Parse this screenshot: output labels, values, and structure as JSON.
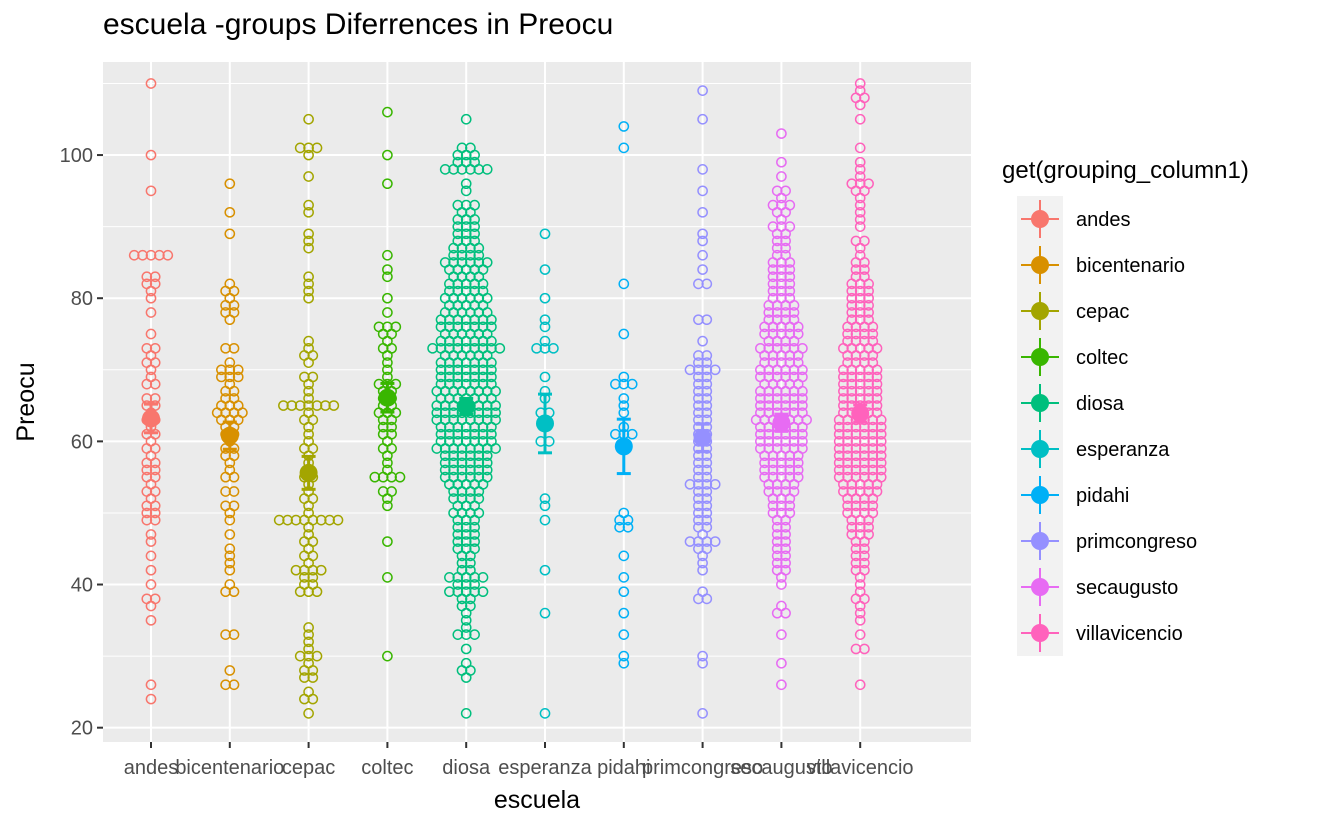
{
  "chart_data": {
    "type": "scatter",
    "title": "escuela -groups Diferrences in  Preocu",
    "xlabel": "escuela",
    "ylabel": "Preocu",
    "categories": [
      "andes",
      "bicentenario",
      "cepac",
      "coltec",
      "diosa",
      "esperanza",
      "pidahi",
      "primcongreso",
      "secaugusto",
      "villavicencio"
    ],
    "y_ticks": [
      20,
      40,
      60,
      80,
      100
    ],
    "ylim": [
      18,
      113
    ],
    "grid": true,
    "legend": {
      "title": "get(grouping_column1)",
      "placement": "right"
    },
    "colors": {
      "andes": "#F8766D",
      "bicentenario": "#D89000",
      "cepac": "#A3A500",
      "coltec": "#39B600",
      "diosa": "#00BF7D",
      "esperanza": "#00BFC4",
      "pidahi": "#00B0F6",
      "primcongreso": "#9590FF",
      "secaugusto": "#E76BF3",
      "villavicencio": "#FF62BC",
      "panel_background": "#EBEBEB",
      "grid": "#FFFFFF"
    },
    "series": [
      {
        "name": "andes",
        "mean": 63.2,
        "ci": [
          61.2,
          65.2
        ],
        "values": [
          110,
          100,
          95,
          86,
          86,
          86,
          86,
          86,
          83,
          83,
          82,
          82,
          81,
          80,
          78,
          75,
          73,
          73,
          72,
          71,
          71,
          70,
          69,
          68,
          68,
          66,
          66,
          65,
          65,
          64,
          63,
          63,
          62,
          61,
          61,
          60,
          59,
          59,
          58,
          57,
          57,
          56,
          56,
          55,
          55,
          54,
          53,
          53,
          52,
          51,
          51,
          50,
          50,
          49,
          49,
          47,
          46,
          44,
          42,
          40,
          38,
          38,
          37,
          35,
          26,
          24
        ]
      },
      {
        "name": "bicentenario",
        "mean": 60.8,
        "ci": [
          58.9,
          62.7
        ],
        "values": [
          96,
          92,
          89,
          82,
          81,
          81,
          80,
          79,
          79,
          78,
          78,
          77,
          73,
          73,
          71,
          70,
          70,
          70,
          69,
          69,
          69,
          68,
          67,
          67,
          66,
          66,
          65,
          65,
          65,
          64,
          64,
          64,
          64,
          63,
          63,
          63,
          62,
          62,
          61,
          61,
          60,
          59,
          59,
          58,
          58,
          57,
          56,
          55,
          55,
          53,
          53,
          51,
          51,
          50,
          49,
          47,
          45,
          44,
          43,
          42,
          40,
          39,
          39,
          33,
          33,
          28,
          26,
          26
        ]
      },
      {
        "name": "cepac",
        "mean": 55.6,
        "ci": [
          53.3,
          57.9
        ],
        "values": [
          105,
          101,
          101,
          101,
          100,
          97,
          93,
          92,
          89,
          88,
          87,
          83,
          82,
          81,
          80,
          74,
          73,
          72,
          72,
          71,
          69,
          69,
          68,
          67,
          66,
          65,
          65,
          65,
          65,
          65,
          65,
          65,
          64,
          63,
          63,
          62,
          61,
          60,
          59,
          59,
          58,
          57,
          56,
          55,
          55,
          54,
          53,
          52,
          52,
          51,
          50,
          49,
          49,
          49,
          49,
          49,
          49,
          49,
          49,
          48,
          47,
          46,
          46,
          45,
          44,
          44,
          43,
          42,
          42,
          42,
          42,
          41,
          41,
          40,
          40,
          39,
          39,
          39,
          34,
          33,
          32,
          31,
          30,
          30,
          30,
          29,
          28,
          28,
          27,
          27,
          25,
          24,
          24,
          22
        ]
      },
      {
        "name": "coltec",
        "mean": 66.1,
        "ci": [
          64.1,
          68.1
        ],
        "values": [
          106,
          100,
          96,
          86,
          84,
          83,
          80,
          78,
          76,
          76,
          76,
          75,
          75,
          74,
          73,
          73,
          72,
          71,
          70,
          69,
          68,
          68,
          68,
          67,
          67,
          66,
          66,
          65,
          65,
          64,
          64,
          64,
          63,
          63,
          62,
          62,
          61,
          61,
          60,
          59,
          59,
          58,
          57,
          56,
          55,
          55,
          55,
          55,
          53,
          53,
          52,
          51,
          46,
          41,
          30
        ]
      },
      {
        "name": "diosa",
        "mean": 64.9,
        "ci": [
          63.8,
          66.0
        ],
        "values": [
          105,
          101,
          101,
          100,
          100,
          100,
          99,
          99,
          99,
          98,
          98,
          98,
          98,
          98,
          98,
          96,
          95,
          93,
          93,
          93,
          92,
          92,
          91,
          91,
          91,
          90,
          90,
          90,
          89,
          89,
          89,
          88,
          88,
          88,
          87,
          87,
          87,
          87,
          86,
          86,
          86,
          86,
          85,
          85,
          85,
          85,
          85,
          85,
          84,
          84,
          84,
          84,
          84,
          83,
          83,
          83,
          83,
          82,
          82,
          82,
          82,
          82,
          81,
          81,
          81,
          81,
          81,
          80,
          80,
          80,
          80,
          80,
          80,
          79,
          79,
          79,
          79,
          79,
          78,
          78,
          78,
          78,
          78,
          78,
          77,
          77,
          77,
          77,
          77,
          77,
          77,
          76,
          76,
          76,
          76,
          76,
          76,
          76,
          75,
          75,
          75,
          75,
          75,
          75,
          74,
          74,
          74,
          74,
          74,
          74,
          74,
          73,
          73,
          73,
          73,
          73,
          73,
          73,
          73,
          73,
          72,
          72,
          72,
          72,
          72,
          72,
          71,
          71,
          71,
          71,
          71,
          71,
          71,
          70,
          70,
          70,
          70,
          70,
          70,
          70,
          69,
          69,
          69,
          69,
          69,
          69,
          69,
          68,
          68,
          68,
          68,
          68,
          68,
          68,
          67,
          67,
          67,
          67,
          67,
          67,
          67,
          67,
          66,
          66,
          66,
          66,
          66,
          66,
          66,
          65,
          65,
          65,
          65,
          65,
          65,
          65,
          65,
          64,
          64,
          64,
          64,
          64,
          64,
          64,
          64,
          63,
          63,
          63,
          63,
          63,
          63,
          63,
          63,
          62,
          62,
          62,
          62,
          62,
          62,
          62,
          61,
          61,
          61,
          61,
          61,
          61,
          61,
          60,
          60,
          60,
          60,
          60,
          60,
          60,
          59,
          59,
          59,
          59,
          59,
          59,
          59,
          59,
          58,
          58,
          58,
          58,
          58,
          58,
          57,
          57,
          57,
          57,
          57,
          57,
          56,
          56,
          56,
          56,
          56,
          56,
          55,
          55,
          55,
          55,
          55,
          55,
          54,
          54,
          54,
          54,
          54,
          53,
          53,
          53,
          53,
          52,
          52,
          52,
          52,
          51,
          51,
          51,
          50,
          50,
          50,
          50,
          49,
          49,
          49,
          48,
          48,
          48,
          47,
          47,
          47,
          46,
          46,
          46,
          45,
          45,
          45,
          44,
          44,
          43,
          43,
          42,
          42,
          41,
          41,
          41,
          41,
          41,
          40,
          40,
          40,
          39,
          39,
          39,
          39,
          39,
          38,
          38,
          37,
          37,
          36,
          35,
          34,
          33,
          33,
          33,
          31,
          29,
          28,
          28,
          27,
          22
        ]
      },
      {
        "name": "esperanza",
        "mean": 62.5,
        "ci": [
          58.4,
          66.6
        ],
        "values": [
          89,
          84,
          80,
          77,
          76,
          74,
          73,
          73,
          73,
          69,
          67,
          66,
          64,
          64,
          63,
          62,
          60,
          60,
          52,
          51,
          49,
          42,
          36,
          22
        ]
      },
      {
        "name": "pidahi",
        "mean": 59.3,
        "ci": [
          55.5,
          63.1
        ],
        "values": [
          104,
          101,
          82,
          75,
          69,
          68,
          68,
          68,
          66,
          65,
          64,
          62,
          61,
          61,
          61,
          50,
          49,
          49,
          48,
          48,
          44,
          41,
          39,
          36,
          33,
          30,
          29
        ]
      },
      {
        "name": "primcongreso",
        "mean": 60.5,
        "ci": [
          58.6,
          62.4
        ],
        "values": [
          109,
          105,
          98,
          95,
          92,
          89,
          88,
          86,
          84,
          82,
          82,
          77,
          77,
          74,
          72,
          72,
          71,
          71,
          70,
          70,
          70,
          70,
          69,
          69,
          68,
          68,
          67,
          67,
          66,
          66,
          65,
          65,
          64,
          64,
          63,
          63,
          62,
          62,
          61,
          61,
          60,
          60,
          59,
          59,
          58,
          58,
          57,
          57,
          56,
          56,
          55,
          55,
          54,
          54,
          54,
          54,
          53,
          53,
          52,
          52,
          51,
          51,
          50,
          50,
          49,
          49,
          48,
          48,
          47,
          46,
          46,
          46,
          46,
          45,
          45,
          44,
          43,
          42,
          39,
          38,
          38,
          30,
          29,
          22
        ]
      },
      {
        "name": "secaugusto",
        "mean": 62.6,
        "ci": [
          61.4,
          63.8
        ],
        "values": [
          103,
          99,
          97,
          95,
          95,
          94,
          93,
          93,
          93,
          92,
          92,
          91,
          90,
          90,
          90,
          89,
          89,
          88,
          88,
          87,
          87,
          86,
          86,
          85,
          85,
          85,
          84,
          84,
          84,
          83,
          83,
          83,
          82,
          82,
          82,
          81,
          81,
          81,
          80,
          80,
          80,
          79,
          79,
          79,
          79,
          78,
          78,
          78,
          78,
          77,
          77,
          77,
          77,
          76,
          76,
          76,
          76,
          76,
          75,
          75,
          75,
          75,
          75,
          74,
          74,
          74,
          74,
          73,
          73,
          73,
          73,
          73,
          73,
          72,
          72,
          72,
          72,
          72,
          71,
          71,
          71,
          71,
          71,
          70,
          70,
          70,
          70,
          70,
          70,
          69,
          69,
          69,
          69,
          69,
          69,
          68,
          68,
          68,
          68,
          68,
          67,
          67,
          67,
          67,
          67,
          67,
          66,
          66,
          66,
          66,
          66,
          66,
          65,
          65,
          65,
          65,
          65,
          65,
          64,
          64,
          64,
          64,
          64,
          64,
          63,
          63,
          63,
          63,
          63,
          63,
          63,
          62,
          62,
          62,
          62,
          62,
          62,
          61,
          61,
          61,
          61,
          61,
          61,
          60,
          60,
          60,
          60,
          60,
          60,
          59,
          59,
          59,
          59,
          59,
          59,
          58,
          58,
          58,
          58,
          58,
          57,
          57,
          57,
          57,
          57,
          56,
          56,
          56,
          56,
          56,
          55,
          55,
          55,
          55,
          55,
          54,
          54,
          54,
          54,
          53,
          53,
          53,
          53,
          52,
          52,
          52,
          51,
          51,
          51,
          50,
          50,
          50,
          49,
          49,
          48,
          48,
          47,
          47,
          46,
          46,
          45,
          45,
          44,
          44,
          43,
          43,
          42,
          42,
          41,
          40,
          37,
          36,
          36,
          33,
          29,
          26
        ]
      },
      {
        "name": "villavicencio",
        "mean": 63.9,
        "ci": [
          62.7,
          65.1
        ],
        "values": [
          110,
          109,
          108,
          108,
          107,
          105,
          101,
          99,
          98,
          97,
          96,
          96,
          96,
          95,
          95,
          94,
          93,
          92,
          91,
          90,
          88,
          88,
          87,
          86,
          85,
          85,
          84,
          84,
          83,
          83,
          82,
          82,
          82,
          81,
          81,
          81,
          80,
          80,
          80,
          79,
          79,
          79,
          78,
          78,
          78,
          77,
          77,
          77,
          76,
          76,
          76,
          76,
          75,
          75,
          75,
          75,
          74,
          74,
          74,
          74,
          73,
          73,
          73,
          73,
          73,
          72,
          72,
          72,
          72,
          71,
          71,
          71,
          71,
          70,
          70,
          70,
          70,
          70,
          69,
          69,
          69,
          69,
          69,
          68,
          68,
          68,
          68,
          68,
          67,
          67,
          67,
          67,
          67,
          66,
          66,
          66,
          66,
          66,
          65,
          65,
          65,
          65,
          65,
          64,
          64,
          64,
          64,
          64,
          63,
          63,
          63,
          63,
          63,
          63,
          62,
          62,
          62,
          62,
          62,
          62,
          61,
          61,
          61,
          61,
          61,
          61,
          60,
          60,
          60,
          60,
          60,
          60,
          59,
          59,
          59,
          59,
          59,
          59,
          58,
          58,
          58,
          58,
          58,
          58,
          57,
          57,
          57,
          57,
          57,
          57,
          56,
          56,
          56,
          56,
          56,
          56,
          55,
          55,
          55,
          55,
          55,
          55,
          54,
          54,
          54,
          54,
          54,
          53,
          53,
          53,
          53,
          53,
          52,
          52,
          52,
          52,
          51,
          51,
          51,
          51,
          50,
          50,
          50,
          50,
          49,
          49,
          49,
          48,
          48,
          48,
          47,
          47,
          47,
          46,
          46,
          45,
          45,
          44,
          44,
          43,
          43,
          42,
          42,
          41,
          40,
          39,
          38,
          38,
          37,
          36,
          35,
          33,
          31,
          31,
          26
        ]
      }
    ]
  }
}
